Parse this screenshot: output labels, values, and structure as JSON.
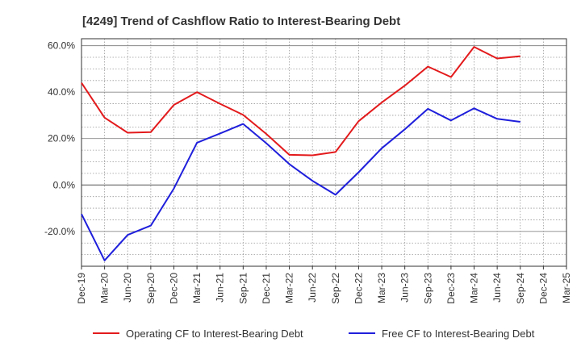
{
  "chart_data": {
    "type": "line",
    "title": "[4249]  Trend of Cashflow Ratio to Interest-Bearing Debt",
    "xlabel": "",
    "ylabel": "",
    "x": [
      "Dec-19",
      "Mar-20",
      "Jun-20",
      "Sep-20",
      "Dec-20",
      "Mar-21",
      "Jun-21",
      "Sep-21",
      "Dec-21",
      "Mar-22",
      "Jun-22",
      "Sep-22",
      "Dec-22",
      "Mar-23",
      "Jun-23",
      "Sep-23",
      "Dec-23",
      "Mar-24",
      "Jun-24",
      "Sep-24",
      "Dec-24",
      "Mar-25"
    ],
    "ylim": [
      -35,
      63
    ],
    "yticks": [
      60,
      40,
      20,
      0,
      -20
    ],
    "ytick_labels": [
      "60.0%",
      "40.0%",
      "20.0%",
      "0.0%",
      "-20.0%"
    ],
    "grid": true,
    "legend_position": "bottom",
    "series": [
      {
        "name": "Operating CF to Interest-Bearing Debt",
        "color": "#e31a1c",
        "values": [
          44,
          29,
          22.5,
          22.8,
          34.5,
          40,
          35,
          30.2,
          22,
          13,
          12.8,
          14.2,
          27.5,
          35.5,
          42.8,
          51,
          46.5,
          59.5,
          54.5,
          55.5,
          null,
          null
        ]
      },
      {
        "name": "Free CF to Interest-Bearing Debt",
        "color": "#1f1fdc",
        "values": [
          -12.5,
          -32.5,
          -21.5,
          -17.5,
          -1.5,
          18.2,
          22.2,
          26.3,
          18,
          9,
          1.8,
          -4.2,
          5.5,
          15.8,
          24,
          32.8,
          27.8,
          33,
          28.5,
          27.2,
          null,
          null
        ]
      }
    ]
  }
}
